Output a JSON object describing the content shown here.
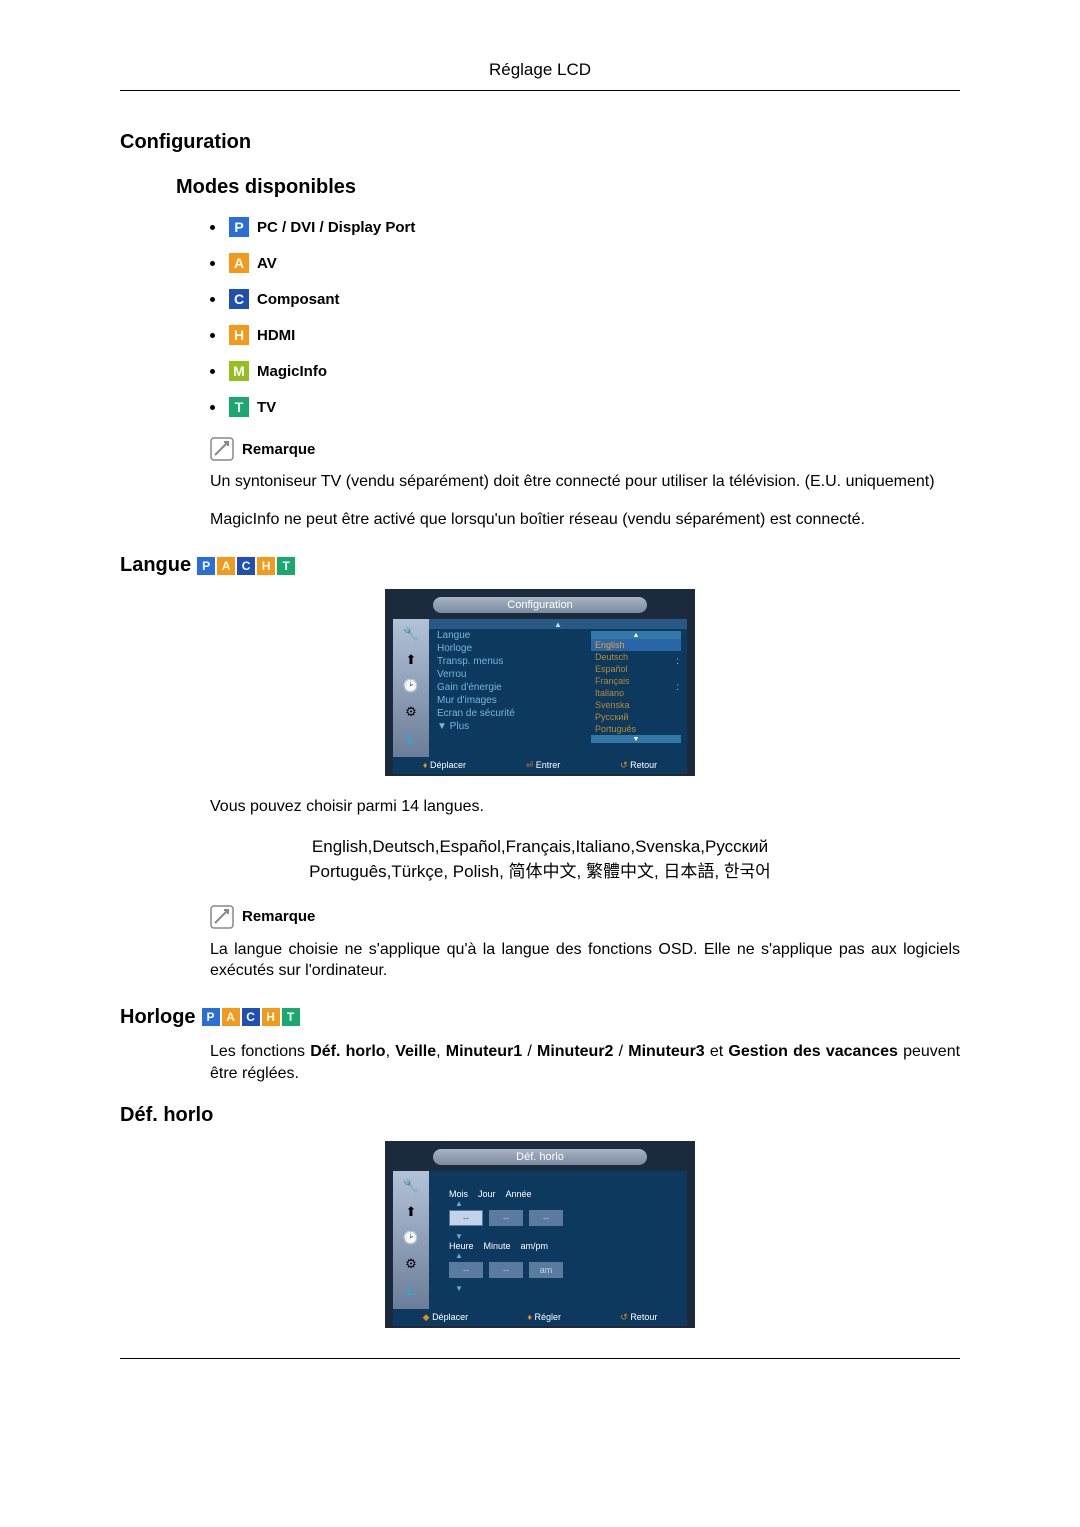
{
  "header": {
    "title": "Réglage LCD"
  },
  "section_config": {
    "title": "Configuration"
  },
  "section_modes": {
    "title": "Modes disponibles"
  },
  "badges": {
    "P": {
      "letter": "P",
      "bg": "#2a6fd6",
      "label": "PC / DVI / Display Port"
    },
    "A": {
      "letter": "A",
      "bg": "#f39a1a",
      "label": "AV"
    },
    "C": {
      "letter": "C",
      "bg": "#1f4fb0",
      "label": "Composant"
    },
    "H": {
      "letter": "H",
      "bg": "#f39a1a",
      "label": "HDMI"
    },
    "M": {
      "letter": "M",
      "bg": "#93c01f",
      "label": "MagicInfo"
    },
    "T": {
      "letter": "T",
      "bg": "#1aa870",
      "label": "TV"
    }
  },
  "note_label": "Remarque",
  "note1": "Un syntoniseur TV (vendu séparément) doit être connecté pour utiliser la télévision.  (E.U. uniquement)",
  "note2": "MagicInfo ne peut être activé que lorsqu'un boîtier réseau (vendu séparément) est connecté.",
  "section_langue": {
    "title": "Langue"
  },
  "osd_config": {
    "title": "Configuration",
    "rows": [
      {
        "label": "Langue",
        "val": ""
      },
      {
        "label": "Horloge",
        "val": ""
      },
      {
        "label": "Transp. menus",
        "val": ":"
      },
      {
        "label": "Verrou",
        "val": ""
      },
      {
        "label": "Gain d'énergie",
        "val": ":"
      },
      {
        "label": "Mur d'images",
        "val": ""
      },
      {
        "label": "Ecran de sécurité",
        "val": ""
      }
    ],
    "plus": "▼ Plus",
    "lang_options": [
      "English",
      "Deutsch",
      "Español",
      "Français",
      "Italiano",
      "Svenska",
      "Русский",
      "Português"
    ],
    "footer": {
      "move": "Déplacer",
      "enter": "Entrer",
      "ret": "Retour"
    }
  },
  "langue_body": "Vous pouvez choisir parmi 14 langues.",
  "langue_list_line1": "English,Deutsch,Español,Français,Italiano,Svenska,Русский",
  "langue_list_line2": "Português,Türkçe, Polish, 简体中文,  繁體中文, 日本語, 한국어",
  "langue_note": "La langue choisie ne s'applique qu'à la langue des fonctions OSD. Elle ne s'applique pas aux logiciels exécutés sur l'ordinateur.",
  "section_horloge": {
    "title": "Horloge"
  },
  "horloge_body_pre": "Les fonctions ",
  "horloge_bold1": "Déf. horlo",
  "horloge_sep1": ", ",
  "horloge_bold2": "Veille",
  "horloge_sep2": ", ",
  "horloge_bold3": "Minuteur1",
  "horloge_sep3": " / ",
  "horloge_bold4": "Minuteur2",
  "horloge_sep4": " / ",
  "horloge_bold5": "Minuteur3",
  "horloge_sep5": " et ",
  "horloge_bold6": "Gestion des vacances",
  "horloge_tail": " peuvent être réglées.",
  "section_def": {
    "title": "Déf. horlo"
  },
  "osd_def": {
    "title": "Déf. horlo",
    "labels1": [
      "Mois",
      "Jour",
      "Année"
    ],
    "labels2": [
      "Heure",
      "Minute",
      "am/pm"
    ],
    "ampm": "am",
    "dash": "--",
    "footer": {
      "move": "Déplacer",
      "adjust": "Régler",
      "ret": "Retour"
    }
  }
}
